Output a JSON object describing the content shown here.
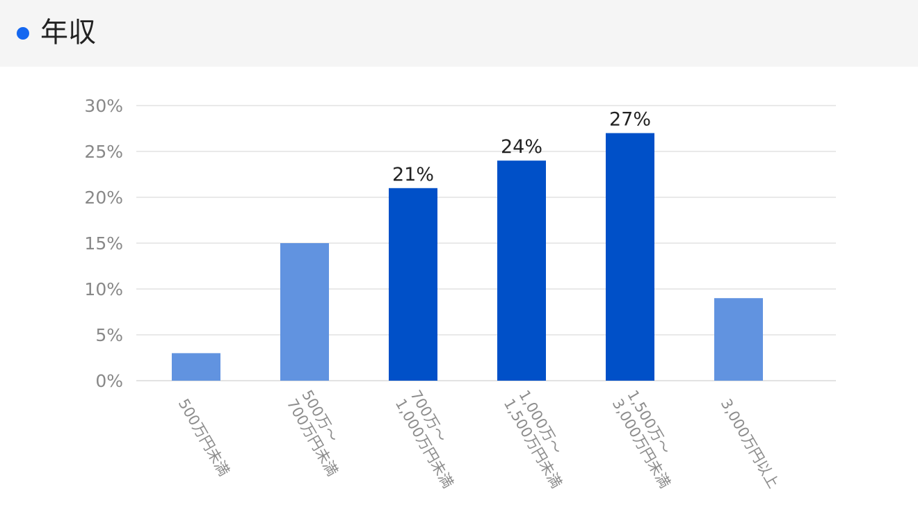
{
  "header": {
    "title": "年収",
    "accent_color": "#1467f0"
  },
  "chart_data": {
    "type": "bar",
    "categories": [
      [
        "500万円未満"
      ],
      [
        "500万～",
        "700万円未満"
      ],
      [
        "700万～",
        "1,000万円未満"
      ],
      [
        "1,000万～",
        "1,500万円未満"
      ],
      [
        "1,500万～",
        "3,000万円未満"
      ],
      [
        "3,000万円以上"
      ]
    ],
    "values": [
      3,
      15,
      21,
      24,
      27,
      9
    ],
    "highlighted": [
      false,
      false,
      true,
      true,
      true,
      false
    ],
    "data_labels": [
      "",
      "",
      "21%",
      "24%",
      "27%",
      ""
    ],
    "ylim": [
      0,
      30
    ],
    "yticks": [
      0,
      5,
      10,
      15,
      20,
      25,
      30
    ],
    "ytick_labels": [
      "0%",
      "5%",
      "10%",
      "15%",
      "20%",
      "25%",
      "30%"
    ],
    "grid": true,
    "legend": "none",
    "colors": {
      "normal": "#6193e0",
      "highlight": "#0050c8",
      "grid": "#e2e2e2"
    }
  }
}
